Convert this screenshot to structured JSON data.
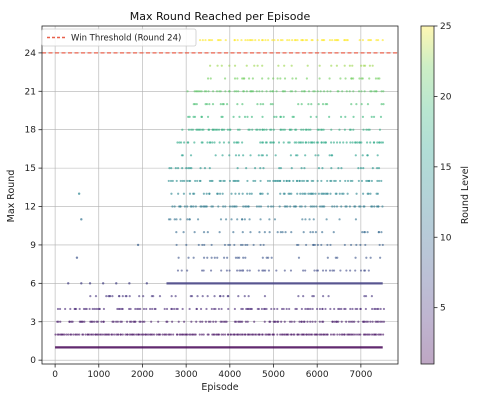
{
  "chart_data": {
    "type": "scatter",
    "title": "Max Round Reached per Episode",
    "xlabel": "Episode",
    "ylabel": "Max Round",
    "xlim": [
      -300,
      7850
    ],
    "ylim": [
      -0.3,
      26.1
    ],
    "xticks": [
      0,
      1000,
      2000,
      3000,
      4000,
      5000,
      6000,
      7000
    ],
    "yticks": [
      0,
      3,
      6,
      9,
      12,
      15,
      18,
      21,
      24
    ],
    "grid": true,
    "colormap": "viridis",
    "point_alpha": 0.35,
    "threshold": {
      "y": 24,
      "label": "Win Threshold (Round 24)",
      "color": "#e8604c",
      "style": "dashed"
    },
    "legend_position": "top-left",
    "colorbar": {
      "label": "Round Level",
      "range": [
        1,
        25
      ],
      "ticks": [
        5,
        10,
        15,
        20,
        25
      ]
    },
    "episode_range": [
      0,
      7500
    ],
    "bands": [
      {
        "round": 1,
        "x_start": 0,
        "x_end": 7500,
        "density": "continuous"
      },
      {
        "round": 2,
        "x_start": 0,
        "x_end": 7500,
        "density": "dense"
      },
      {
        "round": 3,
        "x_start": 0,
        "x_end": 7500,
        "density": "medium"
      },
      {
        "round": 4,
        "x_start": 0,
        "x_end": 7500,
        "density": "medium"
      },
      {
        "round": 5,
        "x_start": 300,
        "x_end": 7500,
        "density": "sparse"
      },
      {
        "round": 6,
        "x_start": 2550,
        "x_end": 7500,
        "density": "continuous"
      },
      {
        "round": 7,
        "x_start": 2700,
        "x_end": 7500,
        "density": "sparse"
      },
      {
        "round": 8,
        "x_start": 2700,
        "x_end": 7500,
        "density": "sparse"
      },
      {
        "round": 9,
        "x_start": 2700,
        "x_end": 7500,
        "density": "sparse"
      },
      {
        "round": 10,
        "x_start": 2700,
        "x_end": 7500,
        "density": "sparse"
      },
      {
        "round": 11,
        "x_start": 2600,
        "x_end": 7500,
        "density": "sparse"
      },
      {
        "round": 12,
        "x_start": 2600,
        "x_end": 7500,
        "density": "medium"
      },
      {
        "round": 13,
        "x_start": 2600,
        "x_end": 7500,
        "density": "medium"
      },
      {
        "round": 14,
        "x_start": 2600,
        "x_end": 7500,
        "density": "medium"
      },
      {
        "round": 15,
        "x_start": 2600,
        "x_end": 7500,
        "density": "sparse"
      },
      {
        "round": 16,
        "x_start": 2800,
        "x_end": 7500,
        "density": "sparse"
      },
      {
        "round": 17,
        "x_start": 2800,
        "x_end": 7500,
        "density": "medium"
      },
      {
        "round": 18,
        "x_start": 2800,
        "x_end": 7500,
        "density": "medium"
      },
      {
        "round": 19,
        "x_start": 3000,
        "x_end": 7500,
        "density": "sparse"
      },
      {
        "round": 20,
        "x_start": 3000,
        "x_end": 7500,
        "density": "sparse"
      },
      {
        "round": 21,
        "x_start": 3000,
        "x_end": 7500,
        "density": "medium"
      },
      {
        "round": 22,
        "x_start": 3300,
        "x_end": 7500,
        "density": "sparse"
      },
      {
        "round": 23,
        "x_start": 3300,
        "x_end": 7500,
        "density": "sparse"
      },
      {
        "round": 25,
        "x_start": 3300,
        "x_end": 7500,
        "density": "medium"
      }
    ],
    "outliers": [
      {
        "x": 500,
        "y": 8
      },
      {
        "x": 600,
        "y": 11
      },
      {
        "x": 550,
        "y": 13
      },
      {
        "x": 1900,
        "y": 9
      },
      {
        "x": 4300,
        "y": 7
      },
      {
        "x": 300,
        "y": 6
      },
      {
        "x": 600,
        "y": 6
      },
      {
        "x": 800,
        "y": 6
      },
      {
        "x": 1100,
        "y": 6
      },
      {
        "x": 1400,
        "y": 6
      },
      {
        "x": 1700,
        "y": 6
      },
      {
        "x": 2100,
        "y": 6
      }
    ]
  }
}
